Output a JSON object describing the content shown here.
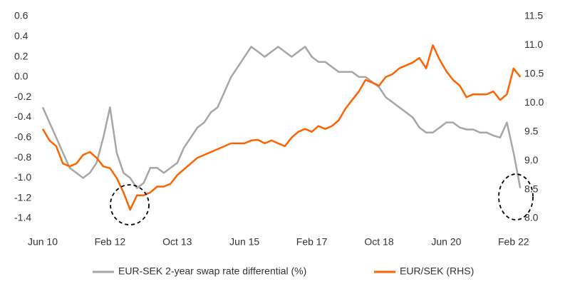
{
  "chart_data": {
    "type": "line",
    "x": [
      "Jun 10",
      "Aug 10",
      "Oct 10",
      "Dec 10",
      "Feb 11",
      "Apr 11",
      "Jun 11",
      "Aug 11",
      "Oct 11",
      "Dec 11",
      "Feb 12",
      "Apr 12",
      "Jun 12",
      "Aug 12",
      "Oct 12",
      "Dec 12",
      "Feb 13",
      "Apr 13",
      "Jun 13",
      "Aug 13",
      "Oct 13",
      "Dec 13",
      "Feb 14",
      "Apr 14",
      "Jun 14",
      "Aug 14",
      "Oct 14",
      "Dec 14",
      "Feb 15",
      "Apr 15",
      "Jun 15",
      "Aug 15",
      "Oct 15",
      "Dec 15",
      "Feb 16",
      "Apr 16",
      "Jun 16",
      "Aug 16",
      "Oct 16",
      "Dec 16",
      "Feb 17",
      "Apr 17",
      "Jun 17",
      "Aug 17",
      "Oct 17",
      "Dec 17",
      "Feb 18",
      "Apr 18",
      "Jun 18",
      "Aug 18",
      "Oct 18",
      "Dec 18",
      "Feb 19",
      "Apr 19",
      "Jun 19",
      "Aug 19",
      "Oct 19",
      "Dec 19",
      "Feb 20",
      "Apr 20",
      "Jun 20",
      "Aug 20",
      "Oct 20",
      "Dec 20",
      "Feb 21",
      "Apr 21",
      "Jun 21",
      "Aug 21",
      "Oct 21",
      "Dec 21",
      "Feb 22",
      "Apr 22"
    ],
    "xticks": [
      "Jun 10",
      "Feb 12",
      "Oct 13",
      "Jun 15",
      "Feb 17",
      "Oct 18",
      "Jun 20",
      "Feb 22"
    ],
    "series": [
      {
        "name": "EUR-SEK 2-year swap rate differential (%)",
        "color": "#a6a6a6",
        "axis": "y",
        "values": [
          -0.3,
          -0.45,
          -0.6,
          -0.75,
          -0.9,
          -0.95,
          -1.0,
          -0.95,
          -0.85,
          -0.6,
          -0.3,
          -0.75,
          -0.95,
          -1.0,
          -1.1,
          -1.05,
          -0.9,
          -0.9,
          -0.95,
          -0.9,
          -0.85,
          -0.7,
          -0.6,
          -0.5,
          -0.45,
          -0.35,
          -0.3,
          -0.15,
          0.0,
          0.1,
          0.2,
          0.3,
          0.25,
          0.2,
          0.25,
          0.3,
          0.25,
          0.2,
          0.25,
          0.3,
          0.2,
          0.15,
          0.15,
          0.1,
          0.05,
          0.05,
          0.05,
          0.0,
          0.0,
          -0.05,
          -0.1,
          -0.2,
          -0.25,
          -0.3,
          -0.35,
          -0.4,
          -0.5,
          -0.55,
          -0.55,
          -0.5,
          -0.45,
          -0.45,
          -0.5,
          -0.52,
          -0.52,
          -0.55,
          -0.55,
          -0.58,
          -0.6,
          -0.45,
          -0.75,
          -1.1
        ]
      },
      {
        "name": "EUR/SEK (RHS)",
        "color": "#ff6200",
        "axis": "y2",
        "values": [
          9.55,
          9.35,
          9.25,
          8.95,
          8.9,
          8.95,
          9.1,
          9.15,
          9.05,
          8.9,
          8.87,
          8.7,
          8.45,
          8.15,
          8.4,
          8.4,
          8.45,
          8.55,
          8.55,
          8.6,
          8.75,
          8.85,
          8.95,
          9.05,
          9.1,
          9.15,
          9.2,
          9.25,
          9.3,
          9.3,
          9.3,
          9.35,
          9.36,
          9.3,
          9.35,
          9.3,
          9.25,
          9.4,
          9.5,
          9.55,
          9.5,
          9.6,
          9.55,
          9.6,
          9.7,
          9.9,
          10.05,
          10.2,
          10.4,
          10.35,
          10.3,
          10.45,
          10.5,
          10.6,
          10.65,
          10.7,
          10.78,
          10.6,
          11.0,
          10.75,
          10.55,
          10.4,
          10.3,
          10.1,
          10.15,
          10.15,
          10.15,
          10.2,
          10.05,
          10.15,
          10.6,
          10.45
        ]
      }
    ],
    "ylim": [
      -1.4,
      0.6
    ],
    "yticks": [
      0.6,
      0.4,
      0.2,
      {
        "value": 0,
        "label": "0.0"
      },
      -0.2,
      -0.4,
      -0.6,
      -0.8,
      {
        "value": -1,
        "label": "-1.0"
      },
      -1.2,
      -1.4
    ],
    "y2lim": [
      8.0,
      11.5
    ],
    "y2ticks": [
      11.5,
      {
        "value": 11,
        "label": "11.0"
      },
      10.5,
      {
        "value": 10,
        "label": "10.0"
      },
      9.5,
      {
        "value": 9,
        "label": "9.0"
      },
      8.5,
      {
        "value": 8,
        "label": "8.0"
      }
    ],
    "grid": false,
    "legend": "bottom"
  }
}
